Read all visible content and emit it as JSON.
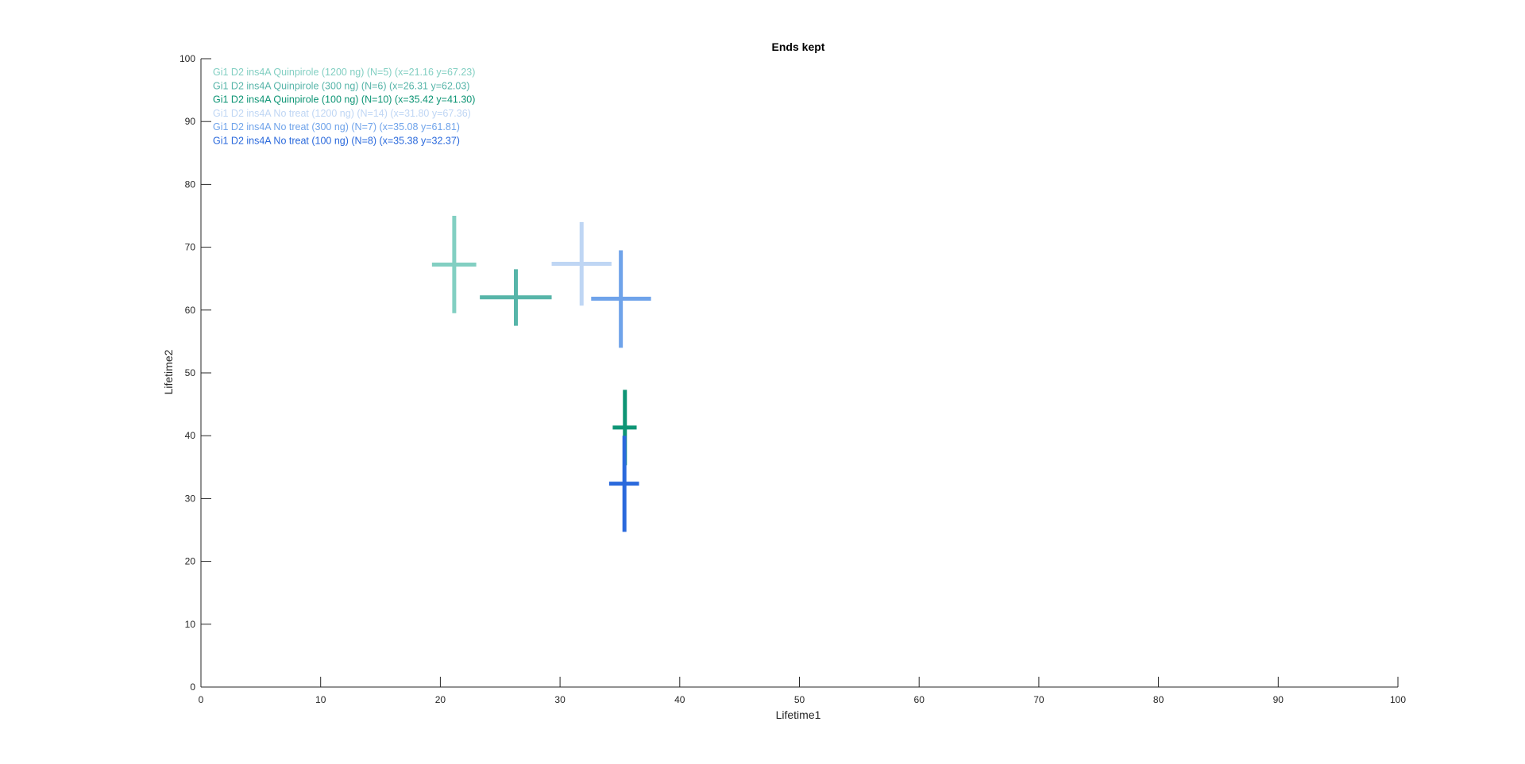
{
  "chart_data": {
    "type": "scatter",
    "marker": "cross-error-bars",
    "title": "Ends kept",
    "xlabel": "Lifetime1",
    "ylabel": "Lifetime2",
    "xlim": [
      0,
      100
    ],
    "ylim": [
      0,
      100
    ],
    "xticks": [
      0,
      10,
      20,
      30,
      40,
      50,
      60,
      70,
      80,
      90,
      100
    ],
    "yticks": [
      0,
      10,
      20,
      30,
      40,
      50,
      60,
      70,
      80,
      90,
      100
    ],
    "grid": false,
    "legend_position": "top-left",
    "series": [
      {
        "name": "Gi1 D2 ins4A Quinpirole (1200 ng) (N=5) (x=21.16 y=67.23)",
        "color": "#82cfc2",
        "x": 21.16,
        "y": 67.23,
        "x_range": [
          19.3,
          23.0
        ],
        "y_range": [
          59.5,
          75.0
        ]
      },
      {
        "name": "Gi1 D2 ins4A Quinpirole (300 ng) (N=6) (x=26.31 y=62.03)",
        "color": "#57b5a9",
        "x": 26.31,
        "y": 62.03,
        "x_range": [
          23.3,
          29.3
        ],
        "y_range": [
          57.5,
          66.5
        ]
      },
      {
        "name": "Gi1 D2 ins4A Quinpirole (100 ng) (N=10) (x=35.42 y=41.30)",
        "color": "#0e9575",
        "x": 35.42,
        "y": 41.3,
        "x_range": [
          34.4,
          36.4
        ],
        "y_range": [
          35.3,
          47.3
        ]
      },
      {
        "name": "Gi1 D2 ins4A No treat (1200 ng) (N=14) (x=31.80 y=67.36)",
        "color": "#bfd6f4",
        "x": 31.8,
        "y": 67.36,
        "x_range": [
          29.3,
          34.3
        ],
        "y_range": [
          60.7,
          74.0
        ]
      },
      {
        "name": "Gi1 D2 ins4A No treat (300 ng) (N=7) (x=35.08 y=61.81)",
        "color": "#6fa3ea",
        "x": 35.08,
        "y": 61.81,
        "x_range": [
          32.6,
          37.6
        ],
        "y_range": [
          54.0,
          69.5
        ]
      },
      {
        "name": "Gi1 D2 ins4A No treat (100 ng) (N=8) (x=35.38 y=32.37)",
        "color": "#2a69dc",
        "x": 35.38,
        "y": 32.37,
        "x_range": [
          34.1,
          36.6
        ],
        "y_range": [
          24.7,
          40.0
        ]
      }
    ]
  }
}
